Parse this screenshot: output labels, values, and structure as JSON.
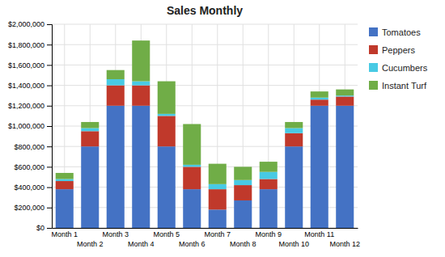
{
  "chart_data": {
    "type": "bar",
    "title": "Sales Monthly",
    "stacked": true,
    "grid": true,
    "legend": "right",
    "categories": [
      "Month 1",
      "Month 2",
      "Month 3",
      "Month 4",
      "Month 5",
      "Month 6",
      "Month 7",
      "Month 8",
      "Month 9",
      "Month 10",
      "Month 11",
      "Month 12"
    ],
    "series": [
      {
        "name": "Tomatoes",
        "color": "#4472C4",
        "values": [
          380000,
          800000,
          1200000,
          1200000,
          800000,
          380000,
          180000,
          270000,
          380000,
          800000,
          1200000,
          1200000
        ]
      },
      {
        "name": "Peppers",
        "color": "#C0392B",
        "values": [
          80000,
          150000,
          200000,
          200000,
          300000,
          220000,
          200000,
          150000,
          100000,
          130000,
          60000,
          90000
        ]
      },
      {
        "name": "Cucumbers",
        "color": "#48CAE4",
        "values": [
          20000,
          30000,
          60000,
          40000,
          20000,
          20000,
          50000,
          50000,
          70000,
          50000,
          20000,
          10000
        ]
      },
      {
        "name": "Instant Turf",
        "color": "#70AD47",
        "values": [
          60000,
          60000,
          90000,
          400000,
          320000,
          400000,
          200000,
          130000,
          100000,
          60000,
          60000,
          60000
        ]
      }
    ],
    "ylim": [
      0,
      2000000
    ],
    "yticks": [
      {
        "value": 0,
        "label": "$0"
      },
      {
        "value": 200000,
        "label": "$200,000"
      },
      {
        "value": 400000,
        "label": "$400,000"
      },
      {
        "value": 600000,
        "label": "$600,000"
      },
      {
        "value": 800000,
        "label": "$800,000"
      },
      {
        "value": 1000000,
        "label": "$1,000,000"
      },
      {
        "value": 1200000,
        "label": "$1,200,000"
      },
      {
        "value": 1400000,
        "label": "$1,400,000"
      },
      {
        "value": 1600000,
        "label": "$1,600,000"
      },
      {
        "value": 1800000,
        "label": "$1,800,000"
      },
      {
        "value": 2000000,
        "label": "$2,000,000"
      }
    ]
  }
}
